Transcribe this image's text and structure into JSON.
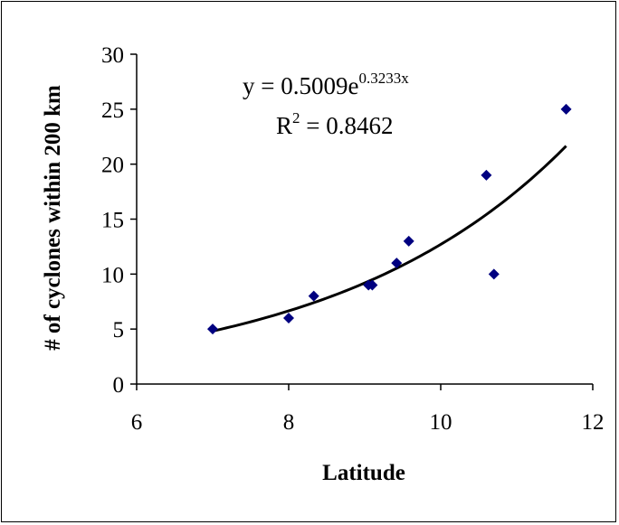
{
  "chart_data": {
    "type": "scatter",
    "title": "",
    "xlabel": "Latitude",
    "ylabel": "# of cyclones within 200 km",
    "xlim": [
      6,
      12
    ],
    "ylim": [
      0,
      30
    ],
    "xticks": [
      6,
      8,
      10,
      12
    ],
    "yticks": [
      0,
      5,
      10,
      15,
      20,
      25,
      30
    ],
    "grid": false,
    "legend": "none",
    "marker": "diamond",
    "colors": {
      "points": "#000080",
      "trendline": "#000000"
    },
    "points": [
      {
        "x": 7.0,
        "y": 5
      },
      {
        "x": 8.0,
        "y": 6
      },
      {
        "x": 8.33,
        "y": 8
      },
      {
        "x": 9.05,
        "y": 9
      },
      {
        "x": 9.1,
        "y": 9
      },
      {
        "x": 9.42,
        "y": 11
      },
      {
        "x": 9.58,
        "y": 13
      },
      {
        "x": 10.6,
        "y": 19
      },
      {
        "x": 10.7,
        "y": 10
      },
      {
        "x": 11.65,
        "y": 25
      }
    ],
    "trendline": {
      "type": "exponential",
      "a": 0.5009,
      "b": 0.3233,
      "x_range": [
        7.0,
        11.65
      ]
    },
    "annotations": {
      "equation_prefix": "y = 0.5009e",
      "equation_exponent": "0.3233x",
      "r2_prefix": "R",
      "r2_exponent": "2",
      "r2_suffix": " = 0.8462"
    }
  }
}
